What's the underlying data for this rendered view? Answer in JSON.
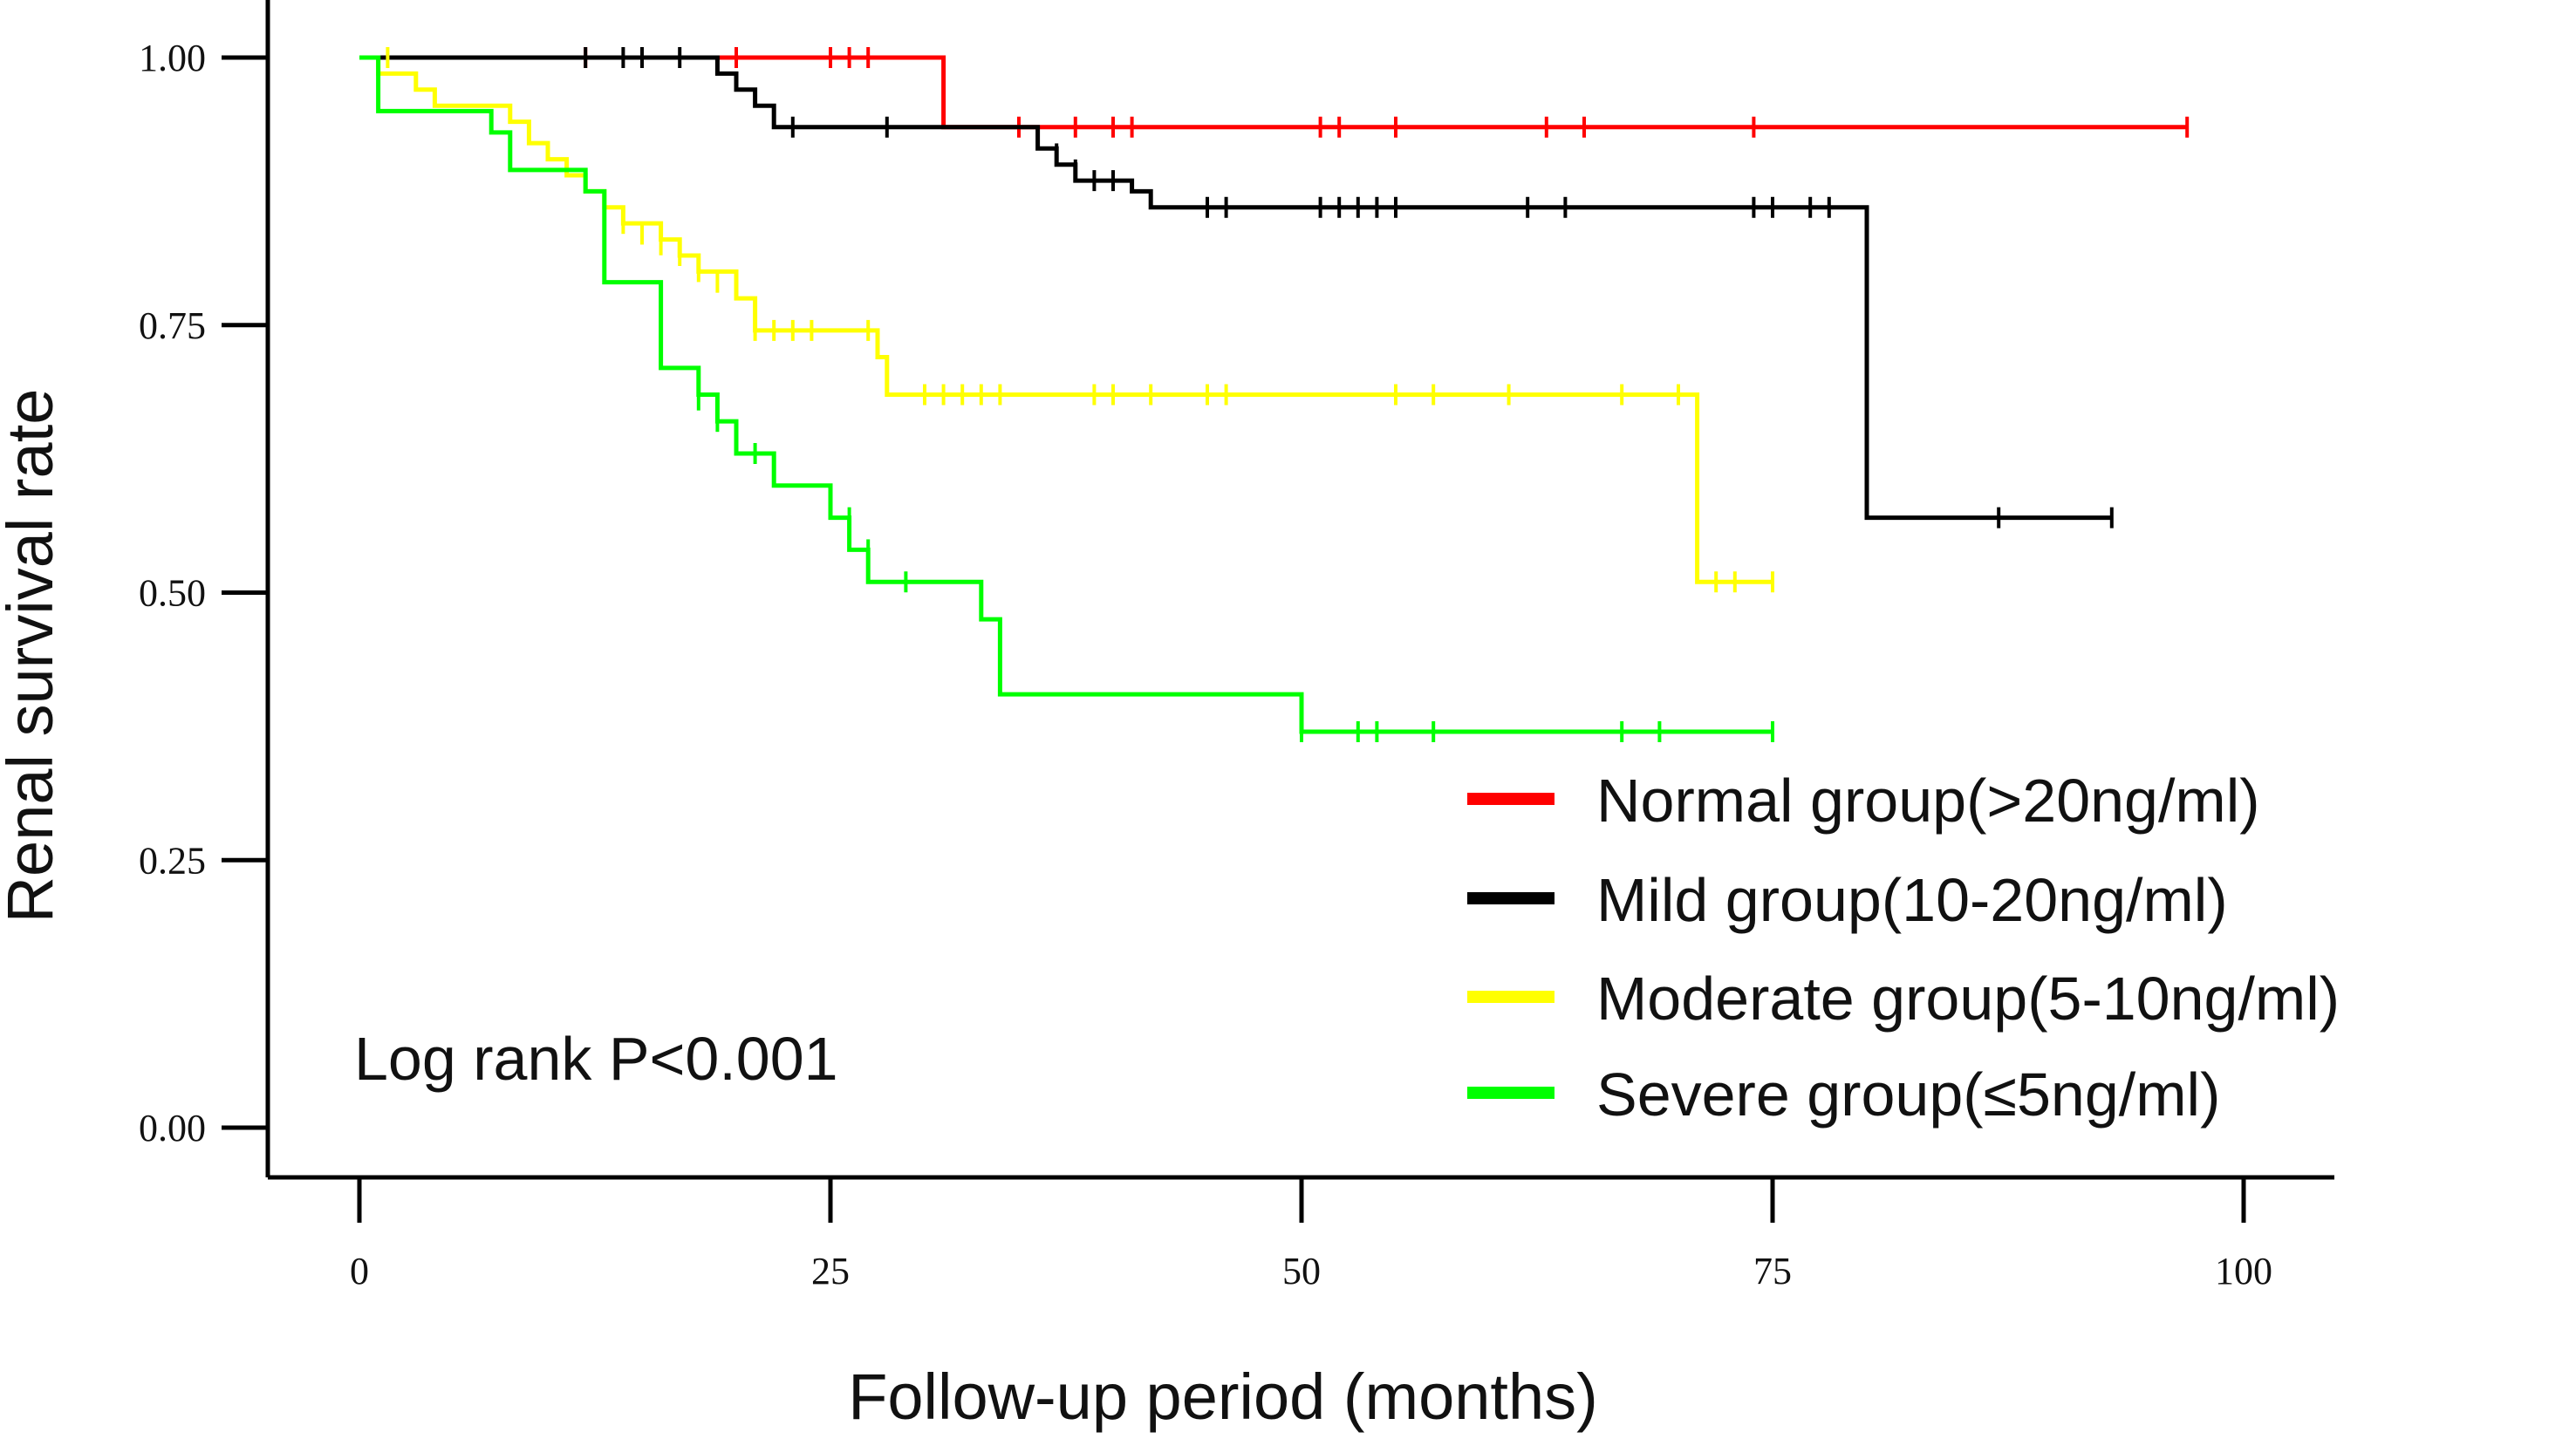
{
  "chart_data": {
    "type": "line",
    "subtype": "kaplan-meier",
    "title": "",
    "xlabel": "Follow-up period (months)",
    "ylabel": "Renal survival rate",
    "xlim": [
      0,
      100
    ],
    "ylim": [
      0,
      1
    ],
    "xticks": [
      0,
      25,
      50,
      75,
      100
    ],
    "xtick_labels": [
      "0",
      "25",
      "50",
      "75",
      "100"
    ],
    "yticks": [
      0,
      0.25,
      0.5,
      0.75,
      1.0
    ],
    "ytick_labels": [
      "0.00",
      "0.25",
      "0.50",
      "0.75",
      "1.00"
    ],
    "grid": false,
    "legend_position": "bottom-right",
    "annotation": "Log rank P<0.001",
    "series": [
      {
        "name": "Normal group(>20ng/ml)",
        "color": "#ff0000",
        "steps": [
          [
            0,
            1.0
          ],
          [
            31,
            0.935
          ],
          [
            97,
            0.935
          ]
        ],
        "censors": [
          [
            12,
            1.0
          ],
          [
            20,
            1.0
          ],
          [
            25,
            1.0
          ],
          [
            26,
            1.0
          ],
          [
            27,
            1.0
          ],
          [
            35,
            0.935
          ],
          [
            38,
            0.935
          ],
          [
            40,
            0.935
          ],
          [
            41,
            0.935
          ],
          [
            51,
            0.935
          ],
          [
            52,
            0.935
          ],
          [
            55,
            0.935
          ],
          [
            63,
            0.935
          ],
          [
            65,
            0.935
          ],
          [
            74,
            0.935
          ],
          [
            97,
            0.935
          ]
        ]
      },
      {
        "name": "Mild group(10-20ng/ml)",
        "color": "#000000",
        "steps": [
          [
            0,
            1.0
          ],
          [
            19,
            0.985
          ],
          [
            20,
            0.97
          ],
          [
            21,
            0.955
          ],
          [
            22,
            0.935
          ],
          [
            34,
            0.935
          ],
          [
            36,
            0.915
          ],
          [
            37,
            0.9
          ],
          [
            38,
            0.885
          ],
          [
            41,
            0.875
          ],
          [
            42,
            0.86
          ],
          [
            80,
            0.86
          ],
          [
            80,
            0.57
          ],
          [
            93,
            0.57
          ]
        ],
        "censors": [
          [
            12,
            1.0
          ],
          [
            14,
            1.0
          ],
          [
            15,
            1.0
          ],
          [
            17,
            1.0
          ],
          [
            23,
            0.935
          ],
          [
            28,
            0.935
          ],
          [
            36,
            0.925
          ],
          [
            37,
            0.91
          ],
          [
            38,
            0.895
          ],
          [
            39,
            0.885
          ],
          [
            40,
            0.885
          ],
          [
            45,
            0.86
          ],
          [
            46,
            0.86
          ],
          [
            51,
            0.86
          ],
          [
            52,
            0.86
          ],
          [
            53,
            0.86
          ],
          [
            54,
            0.86
          ],
          [
            55,
            0.86
          ],
          [
            62,
            0.86
          ],
          [
            64,
            0.86
          ],
          [
            74,
            0.86
          ],
          [
            75,
            0.86
          ],
          [
            77,
            0.86
          ],
          [
            78,
            0.86
          ],
          [
            87,
            0.57
          ],
          [
            93,
            0.57
          ]
        ]
      },
      {
        "name": "Moderate group(5-10ng/ml)",
        "color": "#ffff00",
        "steps": [
          [
            0,
            1.0
          ],
          [
            1,
            0.985
          ],
          [
            3,
            0.97
          ],
          [
            4,
            0.955
          ],
          [
            8,
            0.94
          ],
          [
            9,
            0.92
          ],
          [
            10,
            0.905
          ],
          [
            11,
            0.89
          ],
          [
            12,
            0.875
          ],
          [
            13,
            0.86
          ],
          [
            14,
            0.845
          ],
          [
            16,
            0.83
          ],
          [
            17,
            0.815
          ],
          [
            18,
            0.8
          ],
          [
            20,
            0.775
          ],
          [
            21,
            0.745
          ],
          [
            27,
            0.745
          ],
          [
            27.5,
            0.72
          ],
          [
            28,
            0.685
          ],
          [
            71,
            0.685
          ],
          [
            71,
            0.51
          ],
          [
            75,
            0.51
          ]
        ],
        "censors": [
          [
            1.5,
            1.0
          ],
          [
            14,
            0.845
          ],
          [
            15,
            0.835
          ],
          [
            16,
            0.825
          ],
          [
            17,
            0.815
          ],
          [
            18,
            0.8
          ],
          [
            19,
            0.79
          ],
          [
            20,
            0.79
          ],
          [
            21,
            0.745
          ],
          [
            22,
            0.745
          ],
          [
            23,
            0.745
          ],
          [
            24,
            0.745
          ],
          [
            27,
            0.745
          ],
          [
            30,
            0.685
          ],
          [
            31,
            0.685
          ],
          [
            32,
            0.685
          ],
          [
            33,
            0.685
          ],
          [
            34,
            0.685
          ],
          [
            39,
            0.685
          ],
          [
            40,
            0.685
          ],
          [
            42,
            0.685
          ],
          [
            45,
            0.685
          ],
          [
            46,
            0.685
          ],
          [
            55,
            0.685
          ],
          [
            57,
            0.685
          ],
          [
            61,
            0.685
          ],
          [
            67,
            0.685
          ],
          [
            70,
            0.685
          ],
          [
            72,
            0.51
          ],
          [
            73,
            0.51
          ],
          [
            75,
            0.51
          ]
        ]
      },
      {
        "name": "Severe group(≤5ng/ml)",
        "color": "#00ff00",
        "steps": [
          [
            0,
            1.0
          ],
          [
            1,
            0.95
          ],
          [
            7,
            0.93
          ],
          [
            8,
            0.895
          ],
          [
            12,
            0.875
          ],
          [
            13,
            0.87
          ],
          [
            13,
            0.79
          ],
          [
            16,
            0.79
          ],
          [
            16,
            0.71
          ],
          [
            18,
            0.685
          ],
          [
            19,
            0.66
          ],
          [
            20,
            0.63
          ],
          [
            22,
            0.6
          ],
          [
            25,
            0.6
          ],
          [
            25,
            0.57
          ],
          [
            26,
            0.54
          ],
          [
            27,
            0.51
          ],
          [
            33,
            0.51
          ],
          [
            33,
            0.475
          ],
          [
            34,
            0.405
          ],
          [
            50,
            0.405
          ],
          [
            50,
            0.37
          ],
          [
            75,
            0.37
          ]
        ],
        "censors": [
          [
            18,
            0.68
          ],
          [
            19,
            0.66
          ],
          [
            20,
            0.64
          ],
          [
            21,
            0.63
          ],
          [
            22,
            0.61
          ],
          [
            25,
            0.59
          ],
          [
            26,
            0.57
          ],
          [
            27,
            0.54
          ],
          [
            29,
            0.51
          ],
          [
            34,
            0.44
          ],
          [
            50,
            0.37
          ],
          [
            53,
            0.37
          ],
          [
            54,
            0.37
          ],
          [
            57,
            0.37
          ],
          [
            67,
            0.37
          ],
          [
            69,
            0.37
          ],
          [
            75,
            0.37
          ]
        ]
      }
    ]
  }
}
